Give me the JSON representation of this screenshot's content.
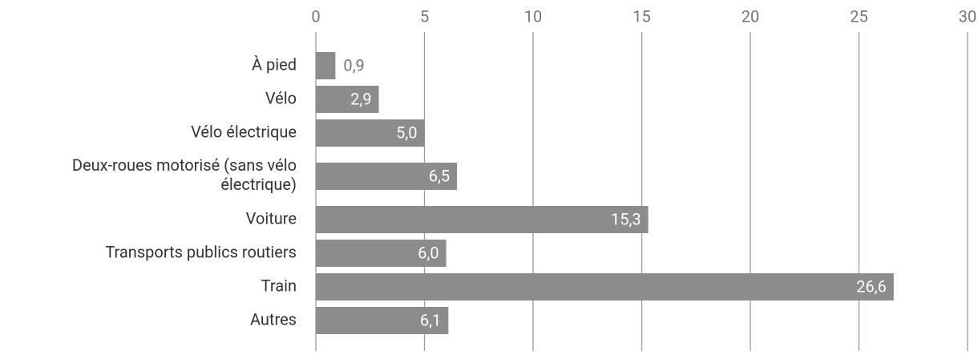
{
  "chart_data": {
    "type": "barh",
    "categories": [
      "À pied",
      "Vélo",
      "Vélo électrique",
      "Deux-roues motorisé (sans vélo électrique)",
      "Voiture",
      "Transports publics routiers",
      "Train",
      "Autres"
    ],
    "values": [
      0.9,
      2.9,
      5.0,
      6.5,
      15.3,
      6.0,
      26.6,
      6.1
    ],
    "value_labels": [
      "0,9",
      "2,9",
      "5,0",
      "6,5",
      "15,3",
      "6,0",
      "26,6",
      "6,1"
    ],
    "color": "#8c8c8c",
    "xlim": [
      0,
      30
    ],
    "xticks": [
      0,
      5,
      10,
      15,
      20,
      25,
      30
    ],
    "grid": true
  }
}
